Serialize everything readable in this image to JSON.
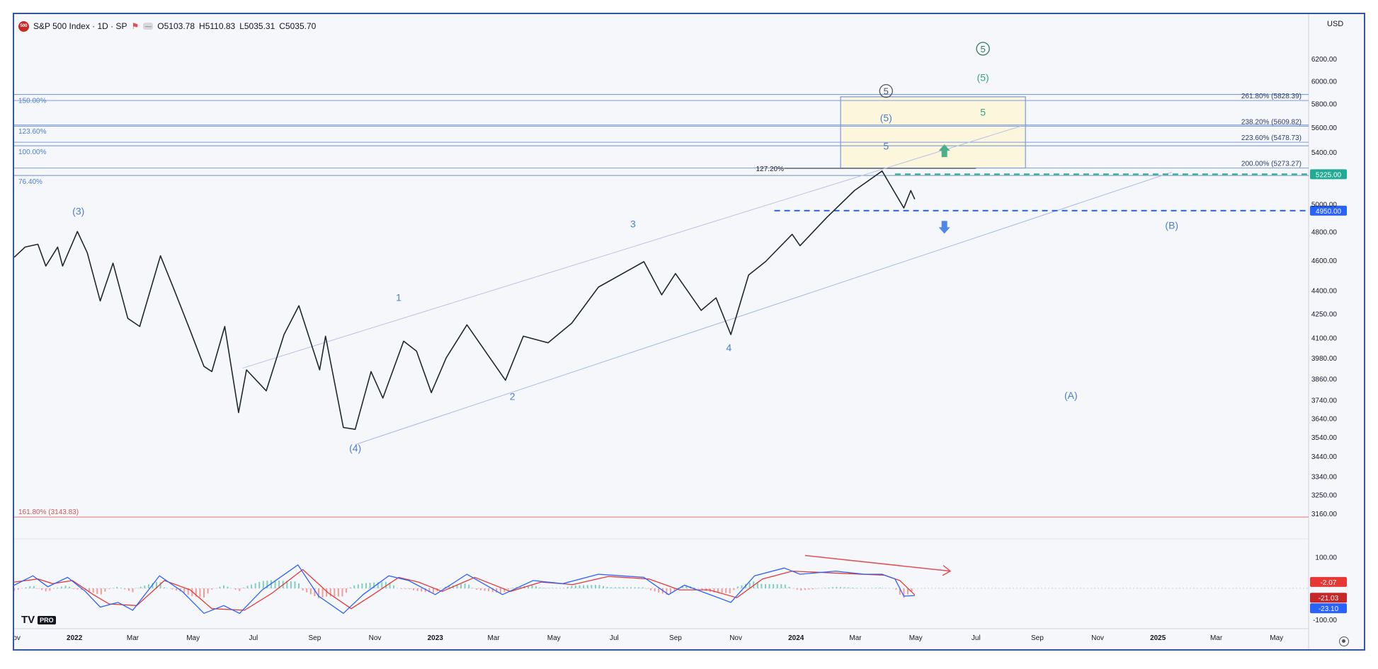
{
  "header": {
    "symbol_badge": "500",
    "title": "S&P 500 Index · 1D · SP",
    "ohlc": [
      {
        "k": "O",
        "v": "5103.78"
      },
      {
        "k": "H",
        "v": "5110.83"
      },
      {
        "k": "L",
        "v": "5035.31"
      },
      {
        "k": "C",
        "v": "5035.70"
      }
    ],
    "currency": "USD"
  },
  "logo": {
    "text": "TV",
    "badge": "PRO"
  },
  "chart_data": {
    "type": "line",
    "title": "S&P 500 Index · 1D · SP",
    "xlabel": "",
    "ylabel": "",
    "y_scale": "log",
    "ylim": [
      3050,
      6500
    ],
    "x_range": [
      "2021-11-01",
      "2025-06-01"
    ],
    "x_ticks": [
      {
        "date": "2021-11-01",
        "label": "Nov"
      },
      {
        "date": "2022-01-01",
        "label": "2022",
        "bold": true
      },
      {
        "date": "2022-03-01",
        "label": "Mar"
      },
      {
        "date": "2022-05-01",
        "label": "May"
      },
      {
        "date": "2022-07-01",
        "label": "Jul"
      },
      {
        "date": "2022-09-01",
        "label": "Sep"
      },
      {
        "date": "2022-11-01",
        "label": "Nov"
      },
      {
        "date": "2023-01-01",
        "label": "2023",
        "bold": true
      },
      {
        "date": "2023-03-01",
        "label": "Mar"
      },
      {
        "date": "2023-05-01",
        "label": "May"
      },
      {
        "date": "2023-07-01",
        "label": "Jul"
      },
      {
        "date": "2023-09-01",
        "label": "Sep"
      },
      {
        "date": "2023-11-01",
        "label": "Nov"
      },
      {
        "date": "2024-01-01",
        "label": "2024",
        "bold": true
      },
      {
        "date": "2024-03-01",
        "label": "Mar"
      },
      {
        "date": "2024-05-01",
        "label": "May"
      },
      {
        "date": "2024-07-01",
        "label": "Jul"
      },
      {
        "date": "2024-09-01",
        "label": "Sep"
      },
      {
        "date": "2024-11-01",
        "label": "Nov"
      },
      {
        "date": "2025-01-01",
        "label": "2025",
        "bold": true
      },
      {
        "date": "2025-03-01",
        "label": "Mar"
      },
      {
        "date": "2025-05-01",
        "label": "May"
      }
    ],
    "y_ticks": [
      "6200.00",
      "6000.00",
      "5800.00",
      "5600.00",
      "5400.00",
      "5000.00",
      "4800.00",
      "4600.00",
      "4400.00",
      "4250.00",
      "4100.00",
      "3980.00",
      "3860.00",
      "3740.00",
      "3640.00",
      "3540.00",
      "3440.00",
      "3340.00",
      "3250.00",
      "3160.00"
    ],
    "series": [
      {
        "points": [
          {
            "x": "2021-11-01",
            "y": 4620
          },
          {
            "x": "2021-11-12",
            "y": 4690
          },
          {
            "x": "2021-11-25",
            "y": 4710
          },
          {
            "x": "2021-12-03",
            "y": 4560
          },
          {
            "x": "2021-12-15",
            "y": 4690
          },
          {
            "x": "2021-12-20",
            "y": 4560
          },
          {
            "x": "2022-01-04",
            "y": 4800
          },
          {
            "x": "2022-01-14",
            "y": 4650
          },
          {
            "x": "2022-01-27",
            "y": 4330
          },
          {
            "x": "2022-02-09",
            "y": 4580
          },
          {
            "x": "2022-02-24",
            "y": 4220
          },
          {
            "x": "2022-03-08",
            "y": 4170
          },
          {
            "x": "2022-03-29",
            "y": 4630
          },
          {
            "x": "2022-04-12",
            "y": 4400
          },
          {
            "x": "2022-04-29",
            "y": 4130
          },
          {
            "x": "2022-05-12",
            "y": 3930
          },
          {
            "x": "2022-05-20",
            "y": 3900
          },
          {
            "x": "2022-06-02",
            "y": 4170
          },
          {
            "x": "2022-06-16",
            "y": 3670
          },
          {
            "x": "2022-06-24",
            "y": 3910
          },
          {
            "x": "2022-07-14",
            "y": 3790
          },
          {
            "x": "2022-08-01",
            "y": 4120
          },
          {
            "x": "2022-08-16",
            "y": 4300
          },
          {
            "x": "2022-09-06",
            "y": 3910
          },
          {
            "x": "2022-09-12",
            "y": 4110
          },
          {
            "x": "2022-09-30",
            "y": 3590
          },
          {
            "x": "2022-10-12",
            "y": 3580
          },
          {
            "x": "2022-10-28",
            "y": 3900
          },
          {
            "x": "2022-11-09",
            "y": 3750
          },
          {
            "x": "2022-11-30",
            "y": 4080
          },
          {
            "x": "2022-12-13",
            "y": 4020
          },
          {
            "x": "2022-12-28",
            "y": 3780
          },
          {
            "x": "2023-01-12",
            "y": 3980
          },
          {
            "x": "2023-02-02",
            "y": 4180
          },
          {
            "x": "2023-03-13",
            "y": 3850
          },
          {
            "x": "2023-03-31",
            "y": 4110
          },
          {
            "x": "2023-04-25",
            "y": 4070
          },
          {
            "x": "2023-05-19",
            "y": 4190
          },
          {
            "x": "2023-06-15",
            "y": 4420
          },
          {
            "x": "2023-07-31",
            "y": 4590
          },
          {
            "x": "2023-08-18",
            "y": 4370
          },
          {
            "x": "2023-09-01",
            "y": 4510
          },
          {
            "x": "2023-09-27",
            "y": 4270
          },
          {
            "x": "2023-10-12",
            "y": 4350
          },
          {
            "x": "2023-10-27",
            "y": 4120
          },
          {
            "x": "2023-11-14",
            "y": 4500
          },
          {
            "x": "2023-12-01",
            "y": 4590
          },
          {
            "x": "2023-12-28",
            "y": 4780
          },
          {
            "x": "2024-01-05",
            "y": 4700
          },
          {
            "x": "2024-02-01",
            "y": 4900
          },
          {
            "x": "2024-02-29",
            "y": 5100
          },
          {
            "x": "2024-03-28",
            "y": 5250
          },
          {
            "x": "2024-04-19",
            "y": 4970
          },
          {
            "x": "2024-04-26",
            "y": 5100
          },
          {
            "x": "2024-04-30",
            "y": 5035
          }
        ]
      }
    ],
    "price_labels": [
      {
        "value": 5225,
        "text": "5225.00",
        "color": "#22ab94"
      },
      {
        "value": 4950,
        "text": "4950.00",
        "color": "#2962ff"
      }
    ],
    "fib_extensions": [
      {
        "value": 5828.39,
        "label": "261.80% (5828.39)"
      },
      {
        "value": 5609.82,
        "label": "238.20% (5609.82)"
      },
      {
        "value": 5478.73,
        "label": "223.60% (5478.73)"
      },
      {
        "value": 5273.27,
        "label": "200.00% (5273.27)"
      },
      {
        "value": 3143.83,
        "label": "161.80% (3143.83)"
      }
    ],
    "left_levels": [
      {
        "value": 5880,
        "label": "150.00%"
      },
      {
        "value": 5620,
        "label": "123.60%"
      },
      {
        "value": 5450,
        "label": "100.00%"
      },
      {
        "value": 5215,
        "label": "76.40%"
      }
    ],
    "mid_label": {
      "value": 5270,
      "label": "127.20%"
    },
    "target_box": {
      "x0": "2024-02-15",
      "x1": "2024-08-20",
      "y0": 5273.27,
      "y1": 5860
    },
    "wave_labels": [
      {
        "text": "(3)",
        "x": "2022-01-05",
        "y": 4920,
        "color": "#4a7fcf"
      },
      {
        "text": "(4)",
        "x": "2022-10-12",
        "y": 3465,
        "color": "#4a7fcf"
      },
      {
        "text": "1",
        "x": "2022-11-25",
        "y": 4330,
        "color": "#4a7fcf"
      },
      {
        "text": "2",
        "x": "2023-03-20",
        "y": 3740,
        "color": "#4a7fcf"
      },
      {
        "text": "3",
        "x": "2023-07-20",
        "y": 4830,
        "color": "#4a7fcf"
      },
      {
        "text": "4",
        "x": "2023-10-25",
        "y": 4020,
        "color": "#4a7fcf"
      },
      {
        "text": "5",
        "x": "2024-04-01",
        "y": 5420,
        "color": "#4a7fcf"
      },
      {
        "text": "(5)",
        "x": "2024-04-01",
        "y": 5650,
        "color": "#4a7fcf"
      },
      {
        "text": "5",
        "x": "2024-07-08",
        "y": 5700,
        "color": "#3aa48a"
      },
      {
        "text": "(5)",
        "x": "2024-07-08",
        "y": 6000,
        "color": "#3aa48a"
      },
      {
        "text": "(A)",
        "x": "2024-10-05",
        "y": 3745,
        "color": "#4a7fcf"
      },
      {
        "text": "(B)",
        "x": "2025-01-15",
        "y": 4820,
        "color": "#4a7fcf"
      }
    ],
    "circled_labels": [
      {
        "text": "5",
        "x": "2024-04-01",
        "y": 5880,
        "color": "#555555"
      },
      {
        "text": "5",
        "x": "2024-07-08",
        "y": 6260,
        "color": "#2e7d5b"
      }
    ],
    "arrows": [
      {
        "direction": "up",
        "x": "2024-05-30",
        "y": 5410,
        "color": "#4caf8a"
      },
      {
        "direction": "down",
        "x": "2024-05-30",
        "y": 4830,
        "color": "#4f86e8"
      }
    ],
    "channel": {
      "lower": {
        "from": {
          "x": "2022-10-12",
          "y": 3500
        },
        "to": {
          "x": "2025-01-15",
          "y": 5240
        }
      },
      "upper": {
        "from": {
          "x": "2022-06-20",
          "y": 3920
        },
        "to": {
          "x": "2024-08-15",
          "y": 5610
        }
      }
    },
    "indicator": {
      "type": "oscillator",
      "ylim": [
        -120,
        140
      ],
      "y_ticks": [
        "100.00",
        "-100.00"
      ],
      "value_labels": [
        {
          "text": "-2.07",
          "value": -2.07,
          "color": "#e53935"
        },
        {
          "text": "-21.03",
          "value": -21.03,
          "color": "#c62828"
        },
        {
          "text": "-23.10",
          "value": -23.1,
          "color": "#2962ff"
        }
      ],
      "fast": [
        {
          "x": "2021-11-01",
          "y": 10
        },
        {
          "x": "2021-11-20",
          "y": 40
        },
        {
          "x": "2021-12-05",
          "y": 5
        },
        {
          "x": "2021-12-25",
          "y": 35
        },
        {
          "x": "2022-01-12",
          "y": -10
        },
        {
          "x": "2022-01-27",
          "y": -60
        },
        {
          "x": "2022-02-14",
          "y": -45
        },
        {
          "x": "2022-03-01",
          "y": -70
        },
        {
          "x": "2022-03-28",
          "y": 40
        },
        {
          "x": "2022-04-20",
          "y": -10
        },
        {
          "x": "2022-05-12",
          "y": -80
        },
        {
          "x": "2022-06-01",
          "y": -55
        },
        {
          "x": "2022-06-17",
          "y": -80
        },
        {
          "x": "2022-07-10",
          "y": -5
        },
        {
          "x": "2022-08-15",
          "y": 75
        },
        {
          "x": "2022-09-05",
          "y": -25
        },
        {
          "x": "2022-09-30",
          "y": -80
        },
        {
          "x": "2022-10-20",
          "y": -20
        },
        {
          "x": "2022-11-15",
          "y": 40
        },
        {
          "x": "2022-12-05",
          "y": 25
        },
        {
          "x": "2023-01-01",
          "y": -20
        },
        {
          "x": "2023-02-02",
          "y": 45
        },
        {
          "x": "2023-03-10",
          "y": -20
        },
        {
          "x": "2023-04-10",
          "y": 25
        },
        {
          "x": "2023-05-10",
          "y": 15
        },
        {
          "x": "2023-06-15",
          "y": 45
        },
        {
          "x": "2023-07-31",
          "y": 35
        },
        {
          "x": "2023-08-25",
          "y": -20
        },
        {
          "x": "2023-09-10",
          "y": 10
        },
        {
          "x": "2023-10-27",
          "y": -45
        },
        {
          "x": "2023-11-20",
          "y": 40
        },
        {
          "x": "2023-12-20",
          "y": 65
        },
        {
          "x": "2024-01-05",
          "y": 45
        },
        {
          "x": "2024-02-10",
          "y": 55
        },
        {
          "x": "2024-03-10",
          "y": 45
        },
        {
          "x": "2024-03-28",
          "y": 45
        },
        {
          "x": "2024-04-10",
          "y": 30
        },
        {
          "x": "2024-04-19",
          "y": -25
        },
        {
          "x": "2024-04-30",
          "y": -23.1
        }
      ],
      "slow": [
        {
          "x": "2021-11-01",
          "y": 20
        },
        {
          "x": "2021-11-25",
          "y": 30
        },
        {
          "x": "2021-12-10",
          "y": 15
        },
        {
          "x": "2021-12-30",
          "y": 25
        },
        {
          "x": "2022-01-20",
          "y": -20
        },
        {
          "x": "2022-02-05",
          "y": -50
        },
        {
          "x": "2022-03-05",
          "y": -55
        },
        {
          "x": "2022-04-02",
          "y": 25
        },
        {
          "x": "2022-04-28",
          "y": -5
        },
        {
          "x": "2022-05-20",
          "y": -65
        },
        {
          "x": "2022-06-22",
          "y": -70
        },
        {
          "x": "2022-07-20",
          "y": -15
        },
        {
          "x": "2022-08-20",
          "y": 60
        },
        {
          "x": "2022-09-15",
          "y": -15
        },
        {
          "x": "2022-10-08",
          "y": -65
        },
        {
          "x": "2022-10-30",
          "y": -20
        },
        {
          "x": "2022-11-25",
          "y": 35
        },
        {
          "x": "2022-12-15",
          "y": 20
        },
        {
          "x": "2023-01-08",
          "y": -10
        },
        {
          "x": "2023-02-10",
          "y": 35
        },
        {
          "x": "2023-03-18",
          "y": -10
        },
        {
          "x": "2023-04-18",
          "y": 20
        },
        {
          "x": "2023-05-20",
          "y": 12
        },
        {
          "x": "2023-06-25",
          "y": 38
        },
        {
          "x": "2023-08-05",
          "y": 30
        },
        {
          "x": "2023-09-05",
          "y": -5
        },
        {
          "x": "2023-10-05",
          "y": -5
        },
        {
          "x": "2023-11-02",
          "y": -30
        },
        {
          "x": "2023-11-28",
          "y": 30
        },
        {
          "x": "2023-12-28",
          "y": 55
        },
        {
          "x": "2024-02-15",
          "y": 48
        },
        {
          "x": "2024-03-30",
          "y": 42
        },
        {
          "x": "2024-04-15",
          "y": 25
        },
        {
          "x": "2024-04-30",
          "y": -21.03
        }
      ],
      "divergence_arrow": {
        "from": {
          "x": "2024-01-10",
          "y": 105
        },
        "to": {
          "x": "2024-06-05",
          "y": 55
        },
        "color": "#e05252"
      }
    }
  }
}
